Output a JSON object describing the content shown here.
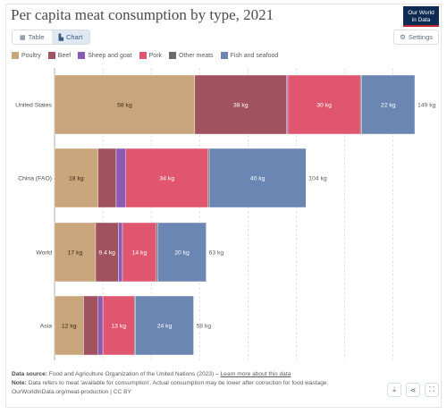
{
  "header": {
    "title": "Per capita meat consumption by type, 2021",
    "logo_line1": "Our World",
    "logo_line2": "in Data"
  },
  "toolbar": {
    "tab_table": "Table",
    "tab_chart": "Chart",
    "settings": "Settings"
  },
  "colors": {
    "Poultry": "#c8a57a",
    "Beef": "#a0525f",
    "Sheep and goat": "#8a5ab5",
    "Pork": "#e0566e",
    "Other meats": "#6b6b6b",
    "Fish and seafood": "#6b86b3"
  },
  "chart_data": {
    "type": "bar",
    "orientation": "horizontal",
    "stacked": true,
    "unit": "kg",
    "categories": [
      "United States",
      "China (FAO)",
      "World",
      "Asia"
    ],
    "series": [
      {
        "name": "Poultry",
        "values": [
          58,
          18,
          17,
          12
        ]
      },
      {
        "name": "Beef",
        "values": [
          38,
          7.5,
          9.4,
          6
        ]
      },
      {
        "name": "Sheep and goat",
        "values": [
          0.5,
          4,
          1.7,
          2
        ]
      },
      {
        "name": "Pork",
        "values": [
          30,
          34,
          14,
          13
        ]
      },
      {
        "name": "Other meats",
        "values": [
          0.5,
          0.5,
          0.6,
          0.5
        ]
      },
      {
        "name": "Fish and seafood",
        "values": [
          22,
          40,
          20,
          24
        ]
      }
    ],
    "segment_labels": [
      [
        "58 kg",
        "38 kg",
        "",
        "30 kg",
        "",
        "22 kg"
      ],
      [
        "18 kg",
        "",
        "",
        "34 kg",
        "",
        "40 kg"
      ],
      [
        "17 kg",
        "9.4 kg",
        "",
        "14 kg",
        "",
        "20 kg"
      ],
      [
        "12 kg",
        "",
        "",
        "13 kg",
        "",
        "24 kg"
      ]
    ],
    "totals": [
      "149 kg",
      "104 kg",
      "63 kg",
      "58 kg"
    ],
    "xlim": [
      0,
      160
    ],
    "grid": true,
    "legend": "top"
  },
  "footer": {
    "source_label": "Data source:",
    "source_text": "Food and Agriculture Organization of the United Nations (2023) –",
    "source_link": "Learn more about this data",
    "note_label": "Note:",
    "note_text": "Data refers to meat 'available for consumption'. Actual consumption may be lower after correction for food wastage.",
    "credit": "OurWorldInData.org/meat-production | CC BY"
  }
}
